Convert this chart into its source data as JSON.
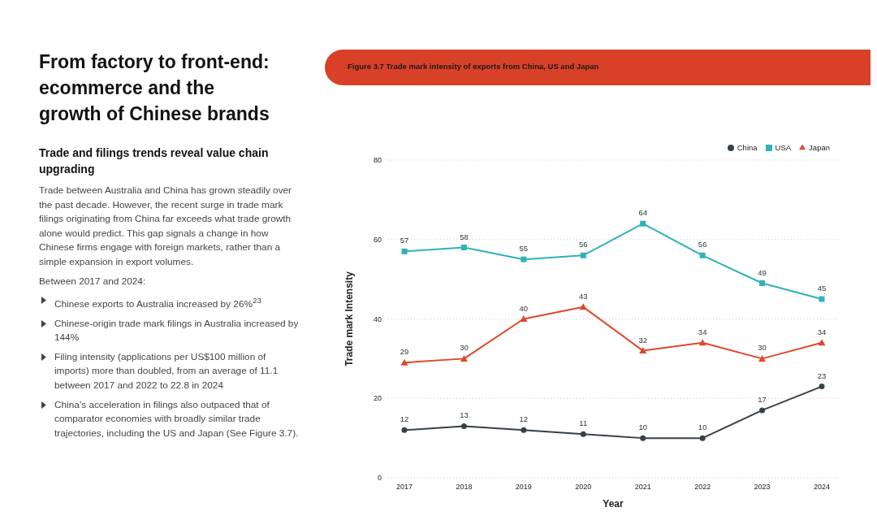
{
  "chart_data": {
    "type": "line",
    "title": "Figure 3.7 Trade mark intensity of exports from China, US and Japan",
    "xlabel": "Year",
    "ylabel": "Trade mark Intensity",
    "categories": [
      "2017",
      "2018",
      "2019",
      "2020",
      "2021",
      "2022",
      "2023",
      "2024"
    ],
    "series": [
      {
        "name": "China",
        "color": "#37404a",
        "marker": "circle",
        "values": [
          12,
          13,
          12,
          11,
          10,
          10,
          17,
          23
        ]
      },
      {
        "name": "USA",
        "color": "#2fb2b8",
        "marker": "square",
        "values": [
          57,
          58,
          55,
          56,
          64,
          56,
          49,
          45
        ]
      },
      {
        "name": "Japan",
        "color": "#e0472a",
        "marker": "triangle",
        "values": [
          29,
          30,
          40,
          43,
          32,
          34,
          30,
          34
        ]
      }
    ],
    "ylim": [
      0,
      80
    ],
    "yticks": [
      0,
      20,
      40,
      60,
      80
    ],
    "grid": "y",
    "legend": "top right",
    "data_labels": true,
    "line_style": "solid",
    "annotations": [
      "From factory to front-end: ecommerce and the growth of Chinese brands",
      "Trade and filings trends reveal value chain upgrading",
      "Trade between Australia and China has grown steadily over the past decade. However, the recent surge in trade mark filings originating from China far exceeds what trade growth alone would predict. This gap signals a change in how Chinese firms engage with foreign markets, rather than a simple expansion in export volumes.",
      "Between 2017 and 2024:",
      "Chinese exports to Australia increased by 26%$^{23}$",
      "Chinese-origin trade mark filings in Australia increased by 144%",
      "Filing intensity (applications per US$100 million of imports) more than doubled, from an average of 11.1 between 2017 and 2022 to 22.8 in 2024",
      "China’s acceleration in filings also outpaced that of comparator economies with broadly similar trade trajectories, including the US and Japan (See Figure 3.7)."
    ]
  }
}
